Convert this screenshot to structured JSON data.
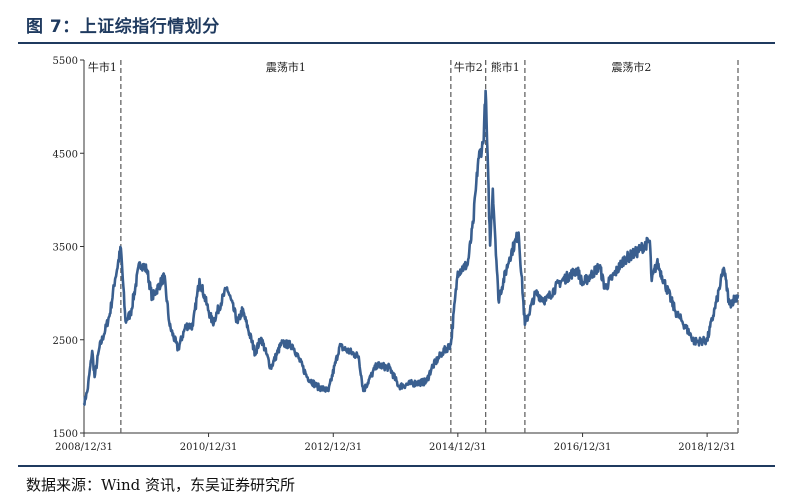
{
  "figure": {
    "title": "图 7：上证综指行情划分",
    "source": "数据来源：Wind 资讯，东吴证券研究所"
  },
  "chart_data": {
    "type": "line",
    "title": "",
    "xlabel": "",
    "ylabel": "",
    "ylim": [
      1500,
      5500
    ],
    "yticks": [
      "5500",
      "4500",
      "3500",
      "2500",
      "1500"
    ],
    "xticks": [
      "2008/12/31",
      "2010/12/31",
      "2012/12/31",
      "2014/12/31",
      "2016/12/31",
      "2018/12/31"
    ],
    "xlim": [
      "2008-12-31",
      "2019-06-30"
    ],
    "grid": false,
    "legend": "none",
    "line_color": "#3a5f8f",
    "phase_dividers": [
      "2009-08-04",
      "2014-11-20",
      "2015-06-12",
      "2016-01-28",
      "2019-06-30"
    ],
    "phases": [
      {
        "label": "牛市1",
        "start": "2008-12-31",
        "end": "2009-08-04"
      },
      {
        "label": "震荡市1",
        "start": "2009-08-04",
        "end": "2014-11-20"
      },
      {
        "label": "牛市2",
        "start": "2014-11-20",
        "end": "2015-06-12"
      },
      {
        "label": "熊市1",
        "start": "2015-06-12",
        "end": "2016-01-28"
      },
      {
        "label": "震荡市2",
        "start": "2016-01-28",
        "end": "2019-06-30"
      }
    ],
    "series": [
      {
        "values": [
          [
            "2008-12-31",
            1820
          ],
          [
            "2009-01-20",
            1950
          ],
          [
            "2009-02-17",
            2380
          ],
          [
            "2009-03-03",
            2100
          ],
          [
            "2009-04-01",
            2420
          ],
          [
            "2009-05-04",
            2600
          ],
          [
            "2009-06-01",
            2780
          ],
          [
            "2009-07-01",
            3150
          ],
          [
            "2009-08-04",
            3480
          ],
          [
            "2009-08-31",
            2700
          ],
          [
            "2009-09-30",
            2780
          ],
          [
            "2009-11-23",
            3330
          ],
          [
            "2010-01-04",
            3250
          ],
          [
            "2010-02-03",
            2950
          ],
          [
            "2010-04-15",
            3180
          ],
          [
            "2010-05-17",
            2650
          ],
          [
            "2010-07-05",
            2400
          ],
          [
            "2010-08-20",
            2650
          ],
          [
            "2010-09-30",
            2650
          ],
          [
            "2010-11-08",
            3150
          ],
          [
            "2010-12-31",
            2810
          ],
          [
            "2011-01-25",
            2680
          ],
          [
            "2011-04-18",
            3060
          ],
          [
            "2011-06-20",
            2680
          ],
          [
            "2011-07-18",
            2820
          ],
          [
            "2011-09-30",
            2360
          ],
          [
            "2011-11-04",
            2520
          ],
          [
            "2011-12-31",
            2200
          ],
          [
            "2012-03-02",
            2460
          ],
          [
            "2012-05-07",
            2440
          ],
          [
            "2012-07-31",
            2100
          ],
          [
            "2012-09-26",
            2000
          ],
          [
            "2012-12-03",
            1950
          ],
          [
            "2013-02-06",
            2430
          ],
          [
            "2013-05-29",
            2320
          ],
          [
            "2013-06-25",
            1950
          ],
          [
            "2013-09-12",
            2230
          ],
          [
            "2013-11-26",
            2200
          ],
          [
            "2014-01-20",
            2000
          ],
          [
            "2014-03-31",
            2030
          ],
          [
            "2014-06-30",
            2050
          ],
          [
            "2014-07-31",
            2200
          ],
          [
            "2014-09-30",
            2360
          ],
          [
            "2014-11-20",
            2450
          ],
          [
            "2014-12-31",
            3230
          ],
          [
            "2015-02-27",
            3310
          ],
          [
            "2015-03-31",
            3750
          ],
          [
            "2015-04-30",
            4440
          ],
          [
            "2015-05-29",
            4610
          ],
          [
            "2015-06-12",
            5170
          ],
          [
            "2015-07-08",
            3510
          ],
          [
            "2015-07-24",
            4120
          ],
          [
            "2015-08-26",
            2930
          ],
          [
            "2015-10-30",
            3380
          ],
          [
            "2015-12-22",
            3650
          ],
          [
            "2016-01-28",
            2660
          ],
          [
            "2016-03-31",
            3000
          ],
          [
            "2016-05-31",
            2920
          ],
          [
            "2016-08-15",
            3110
          ],
          [
            "2016-11-30",
            3250
          ],
          [
            "2016-12-31",
            3100
          ],
          [
            "2017-04-10",
            3290
          ],
          [
            "2017-05-11",
            3050
          ],
          [
            "2017-08-31",
            3360
          ],
          [
            "2017-11-13",
            3440
          ],
          [
            "2018-01-29",
            3560
          ],
          [
            "2018-02-09",
            3130
          ],
          [
            "2018-03-12",
            3330
          ],
          [
            "2018-06-29",
            2800
          ],
          [
            "2018-08-06",
            2700
          ],
          [
            "2018-10-18",
            2480
          ],
          [
            "2018-12-31",
            2490
          ],
          [
            "2019-02-28",
            2940
          ],
          [
            "2019-04-08",
            3270
          ],
          [
            "2019-05-10",
            2880
          ],
          [
            "2019-06-30",
            2980
          ]
        ]
      }
    ]
  }
}
